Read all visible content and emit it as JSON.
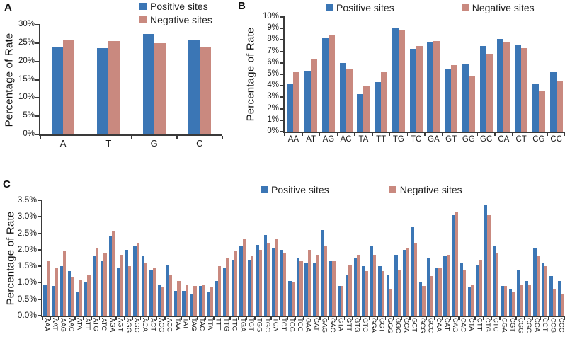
{
  "figure_title": "",
  "legend": {
    "positive_label": "Positive sites",
    "negative_label": "Negative sites"
  },
  "colors": {
    "positive": "#3B76B5",
    "negative": "#C9897F",
    "axis": "#3A3A3A",
    "text": "#1A1A1A"
  },
  "chart_data": [
    {
      "panel": "A",
      "type": "bar",
      "title": "",
      "xlabel": "",
      "ylabel": "Percentage of Rate",
      "ylim": [
        0,
        30
      ],
      "ytick_step": 5,
      "ytick_decimals": 0,
      "grid": false,
      "legend_position": "top-right-stacked",
      "categories": [
        "A",
        "T",
        "G",
        "C"
      ],
      "series": [
        {
          "name": "Positive sites",
          "values": [
            23.8,
            23.7,
            27.5,
            25.8
          ]
        },
        {
          "name": "Negative sites",
          "values": [
            25.8,
            25.5,
            25.0,
            24.0
          ]
        }
      ]
    },
    {
      "panel": "B",
      "type": "bar",
      "title": "",
      "xlabel": "",
      "ylabel": "Percentage of Rate",
      "ylim": [
        0,
        10
      ],
      "ytick_step": 1,
      "ytick_decimals": 0,
      "grid": false,
      "legend_position": "top-horizontal",
      "categories": [
        "AA",
        "AT",
        "AG",
        "AC",
        "TA",
        "TT",
        "TG",
        "TC",
        "GA",
        "GT",
        "GG",
        "GC",
        "CA",
        "CT",
        "CG",
        "CC"
      ],
      "series": [
        {
          "name": "Positive sites",
          "values": [
            4.2,
            5.3,
            8.2,
            6.0,
            3.3,
            4.3,
            9.0,
            7.2,
            7.8,
            5.5,
            5.9,
            7.5,
            8.1,
            7.6,
            4.2,
            5.2
          ]
        },
        {
          "name": "Negative sites",
          "values": [
            5.2,
            6.3,
            8.4,
            5.5,
            4.0,
            5.2,
            8.9,
            7.5,
            7.9,
            5.8,
            4.8,
            6.8,
            7.8,
            7.3,
            3.6,
            4.4
          ]
        }
      ]
    },
    {
      "panel": "C",
      "type": "bar",
      "title": "",
      "xlabel": "",
      "ylabel": "Percentage of Rate",
      "ylim": [
        0,
        3.5
      ],
      "ytick_step": 0.5,
      "ytick_decimals": 1,
      "grid": false,
      "legend_position": "top-horizontal",
      "categories": [
        "AAA",
        "AAT",
        "AAG",
        "AAC",
        "ATA",
        "ATT",
        "ATG",
        "ATC",
        "AGA",
        "AGT",
        "AGG",
        "AGC",
        "ACA",
        "ACT",
        "ACG",
        "ACC",
        "TAA",
        "TAT",
        "TAG",
        "TAC",
        "TTA",
        "TTT",
        "TTG",
        "TTC",
        "TGA",
        "TGT",
        "TGG",
        "TGC",
        "TCA",
        "TCT",
        "TCG",
        "TCC",
        "GAA",
        "GAT",
        "GAG",
        "GAC",
        "GTA",
        "GTT",
        "GTG",
        "GTC",
        "GGA",
        "GGT",
        "GGG",
        "GGC",
        "GCA",
        "GCT",
        "GCG",
        "GCC",
        "CAA",
        "CAT",
        "CAG",
        "CAC",
        "CTA",
        "CTT",
        "CTG",
        "CTC",
        "CGA",
        "CGT",
        "CGG",
        "CGC",
        "CCA",
        "CCT",
        "CCG",
        "CCC"
      ],
      "series": [
        {
          "name": "Positive sites",
          "values": [
            0.95,
            0.9,
            1.5,
            1.35,
            0.7,
            1.0,
            1.8,
            1.65,
            2.4,
            1.45,
            2.0,
            2.1,
            1.8,
            1.4,
            0.95,
            1.55,
            0.75,
            0.75,
            0.65,
            0.9,
            0.7,
            1.05,
            1.45,
            1.7,
            2.1,
            1.7,
            2.15,
            2.45,
            2.05,
            2.0,
            1.05,
            1.75,
            1.6,
            1.6,
            2.6,
            1.65,
            0.9,
            1.25,
            1.75,
            1.5,
            2.1,
            1.5,
            1.25,
            1.85,
            2.0,
            2.7,
            1.0,
            1.75,
            1.45,
            1.8,
            3.05,
            1.6,
            0.85,
            1.55,
            3.35,
            2.1,
            0.9,
            0.8,
            1.4,
            1.05,
            2.05,
            1.6,
            1.2,
            1.05
          ]
        },
        {
          "name": "Negative sites",
          "values": [
            1.65,
            1.45,
            1.95,
            1.15,
            1.1,
            1.25,
            2.05,
            1.9,
            2.55,
            1.85,
            1.5,
            2.2,
            1.6,
            1.45,
            0.85,
            1.25,
            1.05,
            0.95,
            0.9,
            0.95,
            0.85,
            1.5,
            1.75,
            1.95,
            2.35,
            1.8,
            2.0,
            2.2,
            2.35,
            1.9,
            1.0,
            1.65,
            2.0,
            1.85,
            2.1,
            1.65,
            0.9,
            1.55,
            1.85,
            1.35,
            1.85,
            1.35,
            0.8,
            1.4,
            2.05,
            2.2,
            0.9,
            1.2,
            1.45,
            1.85,
            3.15,
            1.4,
            0.95,
            1.7,
            3.05,
            1.9,
            0.9,
            0.7,
            0.95,
            0.95,
            1.8,
            1.5,
            0.8,
            0.65
          ]
        }
      ]
    }
  ]
}
